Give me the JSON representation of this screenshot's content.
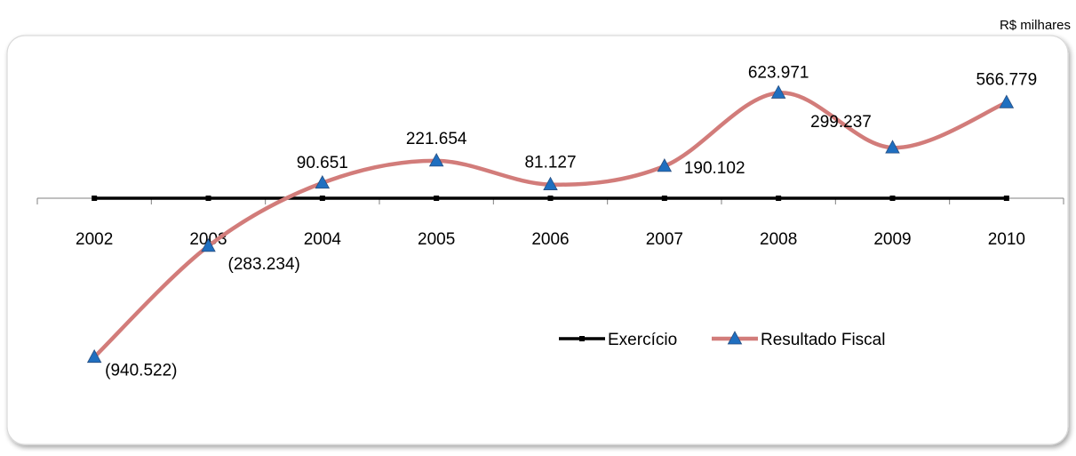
{
  "unit_label": "R$ milhares",
  "chart_data": {
    "type": "line",
    "categories": [
      "2002",
      "2003",
      "2004",
      "2005",
      "2006",
      "2007",
      "2008",
      "2009",
      "2010"
    ],
    "series": [
      {
        "name": "Exercício",
        "values": [
          0,
          0,
          0,
          0,
          0,
          0,
          0,
          0,
          0
        ],
        "color": "#000000",
        "marker": "square"
      },
      {
        "name": "Resultado Fiscal",
        "values": [
          -940522,
          -283234,
          90651,
          221654,
          81127,
          190102,
          623971,
          299237,
          566779
        ],
        "labels": [
          "(940.522)",
          "(283.234)",
          "90.651",
          "221.654",
          "81.127",
          "190.102",
          "623.971",
          "299.237",
          "566.779"
        ],
        "color": "#D27C7A",
        "marker_color": "#1F6FC0",
        "marker": "triangle"
      }
    ],
    "ylim": [
      -1100000,
      750000
    ],
    "grid": false,
    "legend_position": "center-right",
    "smooth": true
  }
}
